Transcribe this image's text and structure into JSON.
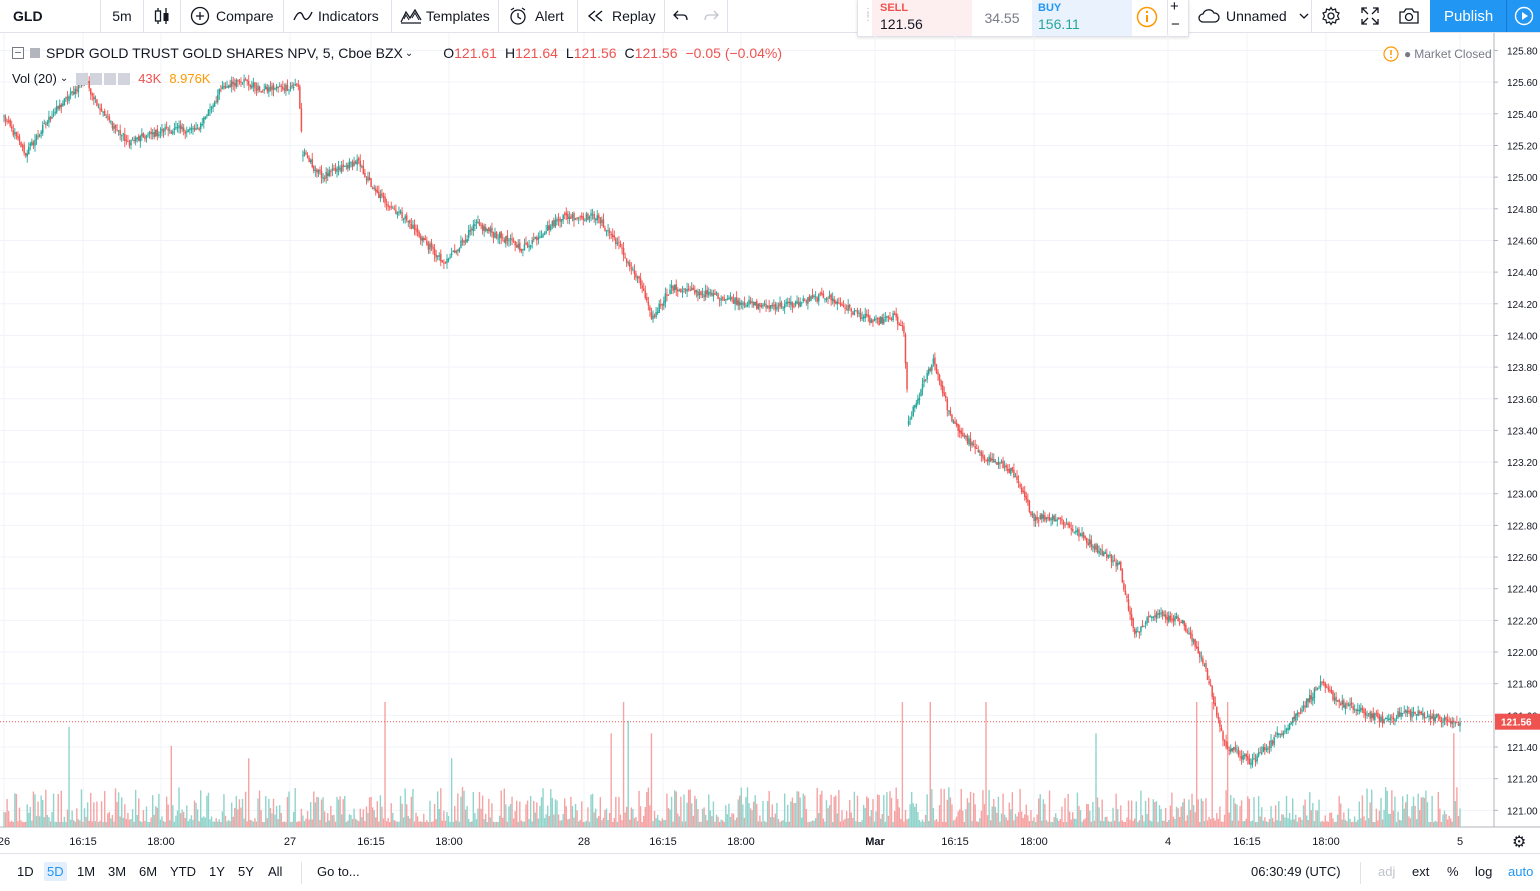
{
  "toolbar": {
    "symbol": "GLD",
    "interval": "5m",
    "compare": "Compare",
    "indicators": "Indicators",
    "templates": "Templates",
    "alert": "Alert",
    "replay": "Replay",
    "layout_name": "Unnamed",
    "publish": "Publish"
  },
  "trade": {
    "sell_label": "SELL",
    "sell_price": "121.56",
    "spread": "34.55",
    "buy_label": "BUY",
    "buy_price": "156.11"
  },
  "legend": {
    "title": "SPDR GOLD TRUST GOLD SHARES NPV, 5, Cboe BZX",
    "o_label": "O",
    "o_value": "121.61",
    "h_label": "H",
    "h_value": "121.64",
    "l_label": "L",
    "l_value": "121.56",
    "c_label": "C",
    "c_value": "121.56",
    "change": "−0.05 (−0.04%)",
    "vol_label": "Vol (20)",
    "vol_value": "43K",
    "vol_ma": "8.976K",
    "market_status": "Market Closed"
  },
  "colors": {
    "up": "#26a69a",
    "down": "#ef5350",
    "up_volume": "#90d4cc",
    "down_volume": "#f5a3a3",
    "accent": "#2196f3",
    "last_price": "#ef5350"
  },
  "chart_data": {
    "type": "candlestick",
    "symbol": "GLD",
    "interval": "5",
    "range": "5D",
    "last_price": 121.56,
    "ylim": [
      120.92,
      125.86
    ],
    "price_ticks": [
      "125.80",
      "125.60",
      "125.40",
      "125.20",
      "125.00",
      "124.80",
      "124.60",
      "124.40",
      "124.20",
      "124.00",
      "123.80",
      "123.60",
      "123.40",
      "123.20",
      "123.00",
      "122.80",
      "122.60",
      "122.40",
      "122.20",
      "122.00",
      "121.80",
      "121.60",
      "121.40",
      "121.20",
      "121.00"
    ],
    "time_ticks": [
      "26",
      "16:15",
      "18:00",
      "27",
      "16:15",
      "18:00",
      "28",
      "16:15",
      "18:00",
      "Mar",
      "16:15",
      "18:00",
      "4",
      "16:15",
      "18:00",
      "5"
    ],
    "anchors": [
      {
        "xi": 0,
        "p": 125.38
      },
      {
        "xi": 14,
        "p": 125.15
      },
      {
        "xi": 30,
        "p": 125.38
      },
      {
        "xi": 52,
        "p": 125.62
      },
      {
        "xi": 64,
        "p": 125.4
      },
      {
        "xi": 80,
        "p": 125.22
      },
      {
        "xi": 105,
        "p": 125.3
      },
      {
        "xi": 125,
        "p": 125.3
      },
      {
        "xi": 140,
        "p": 125.55
      },
      {
        "xi": 152,
        "p": 125.62
      },
      {
        "xi": 166,
        "p": 125.55
      },
      {
        "xi": 190,
        "p": 125.58
      },
      {
        "xi": 193,
        "p": 125.15,
        "gap": true
      },
      {
        "xi": 205,
        "p": 125.0
      },
      {
        "xi": 228,
        "p": 125.1
      },
      {
        "xi": 240,
        "p": 124.9
      },
      {
        "xi": 258,
        "p": 124.75
      },
      {
        "xi": 284,
        "p": 124.45
      },
      {
        "xi": 305,
        "p": 124.7
      },
      {
        "xi": 335,
        "p": 124.55
      },
      {
        "xi": 360,
        "p": 124.75
      },
      {
        "xi": 382,
        "p": 124.75
      },
      {
        "xi": 395,
        "p": 124.6
      },
      {
        "xi": 412,
        "p": 124.3
      },
      {
        "xi": 418,
        "p": 124.1
      },
      {
        "xi": 430,
        "p": 124.3
      },
      {
        "xi": 460,
        "p": 124.25
      },
      {
        "xi": 490,
        "p": 124.18
      },
      {
        "xi": 510,
        "p": 124.2
      },
      {
        "xi": 530,
        "p": 124.25
      },
      {
        "xi": 562,
        "p": 124.08
      },
      {
        "xi": 575,
        "p": 124.12
      },
      {
        "xi": 581,
        "p": 124.02
      },
      {
        "xi": 584,
        "p": 123.45,
        "gap": true
      },
      {
        "xi": 600,
        "p": 123.85
      },
      {
        "xi": 612,
        "p": 123.45
      },
      {
        "xi": 630,
        "p": 123.25
      },
      {
        "xi": 650,
        "p": 123.15
      },
      {
        "xi": 665,
        "p": 122.85
      },
      {
        "xi": 680,
        "p": 122.85
      },
      {
        "xi": 700,
        "p": 122.7
      },
      {
        "xi": 720,
        "p": 122.55
      },
      {
        "xi": 730,
        "p": 122.1
      },
      {
        "xi": 740,
        "p": 122.25
      },
      {
        "xi": 760,
        "p": 122.2
      },
      {
        "xi": 774,
        "p": 121.95
      },
      {
        "xi": 788,
        "p": 121.42
      },
      {
        "xi": 805,
        "p": 121.3
      },
      {
        "xi": 830,
        "p": 121.55
      },
      {
        "xi": 850,
        "p": 121.8
      },
      {
        "xi": 862,
        "p": 121.68
      },
      {
        "xi": 890,
        "p": 121.57
      },
      {
        "xi": 905,
        "p": 121.62
      },
      {
        "xi": 920,
        "p": 121.6
      },
      {
        "xi": 935,
        "p": 121.55
      },
      {
        "xi": 940,
        "p": 121.56
      }
    ],
    "volume_spikes": [
      {
        "xi": 42,
        "v": 0.8
      },
      {
        "xi": 108,
        "v": 0.65
      },
      {
        "xi": 158,
        "v": 0.55
      },
      {
        "xi": 246,
        "v": 1.0
      },
      {
        "xi": 289,
        "v": 0.55
      },
      {
        "xi": 392,
        "v": 0.75
      },
      {
        "xi": 400,
        "v": 1.1
      },
      {
        "xi": 403,
        "v": 0.85
      },
      {
        "xi": 418,
        "v": 0.75
      },
      {
        "xi": 580,
        "v": 1.0
      },
      {
        "xi": 598,
        "v": 1.0
      },
      {
        "xi": 634,
        "v": 1.1
      },
      {
        "xi": 705,
        "v": 0.75
      },
      {
        "xi": 770,
        "v": 1.25
      },
      {
        "xi": 780,
        "v": 1.15
      },
      {
        "xi": 790,
        "v": 1.05
      },
      {
        "xi": 936,
        "v": 0.75
      }
    ]
  },
  "bottom": {
    "ranges": [
      "1D",
      "5D",
      "1M",
      "3M",
      "6M",
      "YTD",
      "1Y",
      "5Y",
      "All"
    ],
    "active_range": "5D",
    "goto": "Go to...",
    "clock": "06:30:49 (UTC)",
    "adj": "adj",
    "ext": "ext",
    "percent": "%",
    "log": "log",
    "auto": "auto"
  }
}
